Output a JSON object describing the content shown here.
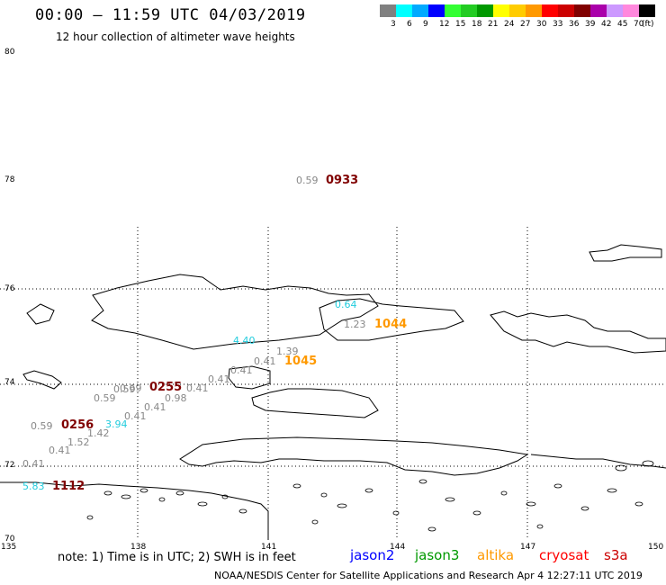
{
  "header": {
    "title": "00:00 – 11:59 UTC 04/03/2019",
    "subtitle": "12 hour collection of altimeter wave heights"
  },
  "legend": {
    "unit": "(ft)",
    "items": [
      {
        "label": "3",
        "color": "#808080"
      },
      {
        "label": "6",
        "color": "#00ffff"
      },
      {
        "label": "9",
        "color": "#00aaff"
      },
      {
        "label": "12",
        "color": "#0000ff"
      },
      {
        "label": "15",
        "color": "#33ff33"
      },
      {
        "label": "18",
        "color": "#22cc22"
      },
      {
        "label": "21",
        "color": "#009900"
      },
      {
        "label": "24",
        "color": "#ffff00"
      },
      {
        "label": "27",
        "color": "#ffcc00"
      },
      {
        "label": "30",
        "color": "#ff9900"
      },
      {
        "label": "33",
        "color": "#ff0000"
      },
      {
        "label": "36",
        "color": "#cc0000"
      },
      {
        "label": "39",
        "color": "#800000"
      },
      {
        "label": "42",
        "color": "#aa00aa"
      },
      {
        "label": "45",
        "color": "#cc99ff"
      },
      {
        "label": "70",
        "color": "#ff88dd"
      },
      {
        "label": "",
        "color": "#000000"
      }
    ]
  },
  "axes": {
    "lat_labels": [
      "80",
      "78",
      "76",
      "74",
      "72",
      "70"
    ],
    "lon_labels": [
      "135",
      "138",
      "141",
      "144",
      "147",
      "150"
    ]
  },
  "observations": {
    "heights": [
      {
        "text": "0.59",
        "cls": "wh"
      },
      {
        "text": "0.64",
        "cls": "cyan"
      },
      {
        "text": "1.23",
        "cls": "wh"
      },
      {
        "text": "4.40",
        "cls": "cyan"
      },
      {
        "text": "1.39",
        "cls": "wh"
      },
      {
        "text": "0.41",
        "cls": "wh"
      },
      {
        "text": "0.41",
        "cls": "wh"
      },
      {
        "text": "0.41",
        "cls": "wh"
      },
      {
        "text": "0.41",
        "cls": "wh"
      },
      {
        "text": "0.98",
        "cls": "wh"
      },
      {
        "text": "0.69",
        "cls": "wh"
      },
      {
        "text": "0.59",
        "cls": "wh"
      },
      {
        "text": "0.59",
        "cls": "wh"
      },
      {
        "text": "0.41",
        "cls": "wh"
      },
      {
        "text": "0.41",
        "cls": "wh"
      },
      {
        "text": "3.94",
        "cls": "cyan"
      },
      {
        "text": "1.42",
        "cls": "wh"
      },
      {
        "text": "0.59",
        "cls": "wh"
      },
      {
        "text": "1.52",
        "cls": "wh"
      },
      {
        "text": "0.41",
        "cls": "wh"
      },
      {
        "text": "0.41",
        "cls": "wh"
      },
      {
        "text": "5.83",
        "cls": "cyan"
      }
    ],
    "times": [
      {
        "text": "0933",
        "color": "#800000"
      },
      {
        "text": "1044",
        "color": "#ff9900"
      },
      {
        "text": "1045",
        "color": "#ff9900"
      },
      {
        "text": "0255",
        "color": "#800000"
      },
      {
        "text": "0256",
        "color": "#800000"
      },
      {
        "text": "1112",
        "color": "#800000"
      }
    ]
  },
  "footer": {
    "note": "note: 1) Time is in UTC; 2) SWH is in feet",
    "satellites": [
      {
        "name": "jason2",
        "color": "#0000ff"
      },
      {
        "name": "jason3",
        "color": "#009900"
      },
      {
        "name": "altika",
        "color": "#ff9900"
      },
      {
        "name": "cryosat",
        "color": "#ff0000"
      },
      {
        "name": "s3a",
        "color": "#cc0000"
      }
    ],
    "credit": "NOAA/NESDIS Center for Satellite Applications and Research    Apr  4 12:27:11 UTC 2019"
  }
}
